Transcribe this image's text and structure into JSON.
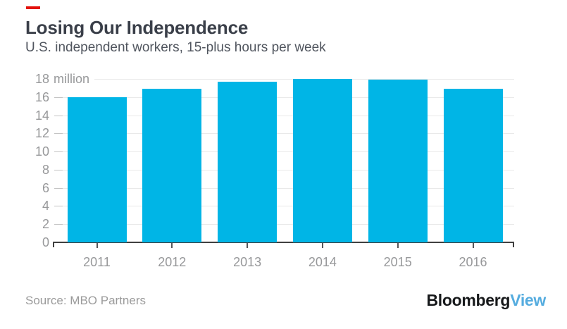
{
  "header": {
    "title": "Losing Our Independence",
    "subtitle": "U.S. independent workers, 15-plus hours per week"
  },
  "chart_data": {
    "type": "bar",
    "title": "Losing Our Independence",
    "subtitle": "U.S. independent workers, 15-plus hours per week",
    "categories": [
      "2011",
      "2012",
      "2013",
      "2014",
      "2015",
      "2016"
    ],
    "values": [
      16.0,
      16.9,
      17.7,
      18.0,
      17.9,
      16.9
    ],
    "xlabel": "",
    "ylabel": "",
    "ylim": [
      0,
      18
    ],
    "yticks": [
      0,
      2,
      4,
      6,
      8,
      10,
      12,
      14,
      16,
      18
    ],
    "ytick_top_suffix": "million",
    "grid": true,
    "legend": "none",
    "bar_color": "#00b5e6"
  },
  "footer": {
    "source": "Source: MBO Partners",
    "brand_black": "Bloomberg",
    "brand_blue": "View"
  },
  "colors": {
    "bar": "#00b5e6",
    "title_text": "#3a3f49",
    "subtitle_text": "#50555e",
    "axis_label": "#97989a",
    "gridline": "#e9e9e9",
    "baseline": "#3f3f3f",
    "brand_blue": "#55acdf",
    "accent_red_dash": "#e3120b"
  }
}
